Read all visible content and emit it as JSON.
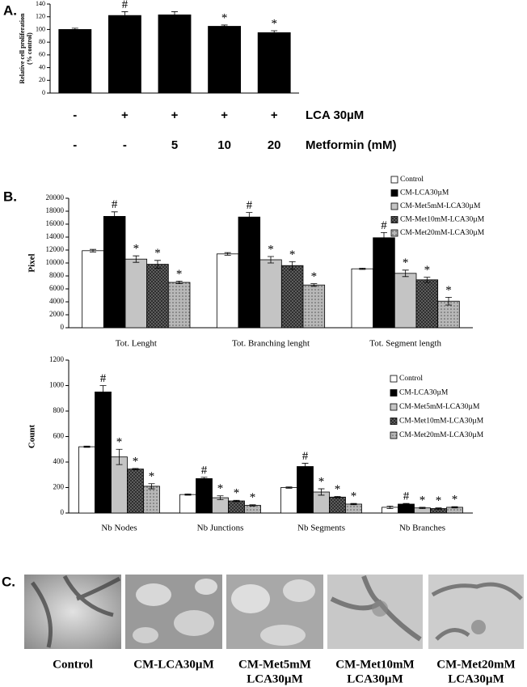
{
  "chart_data": [
    {
      "type": "bar",
      "panel_label": "A.",
      "ylabel": [
        "Relative cell proliferation",
        "(% control)"
      ],
      "ylim": [
        0,
        140
      ],
      "yticks": [
        0,
        20,
        40,
        60,
        80,
        100,
        120,
        140
      ],
      "color": "#000000",
      "values": [
        100,
        122,
        123,
        105,
        95
      ],
      "errors": [
        2,
        6,
        5,
        2,
        3
      ],
      "markers": [
        null,
        "#",
        null,
        "*",
        "*"
      ],
      "condition_rows": [
        {
          "label": "LCA 30µM",
          "values": [
            "-",
            "+",
            "+",
            "+",
            "+"
          ]
        },
        {
          "label": "Metformin (mM)",
          "values": [
            "-",
            "-",
            "5",
            "10",
            "20"
          ]
        }
      ]
    },
    {
      "type": "bar",
      "panel_label": "B.",
      "ylabel": "Pixel",
      "ylim": [
        0,
        20000
      ],
      "yticks": [
        0,
        2000,
        4000,
        6000,
        8000,
        10000,
        12000,
        14000,
        16000,
        18000,
        20000
      ],
      "categories": [
        "Tot. Lenght",
        "Tot. Branching lenght",
        "Tot. Segment length"
      ],
      "series": [
        {
          "name": "Control",
          "color": "#ffffff",
          "values": [
            11900,
            11400,
            9100
          ],
          "errors": [
            200,
            200,
            100
          ],
          "markers": [
            null,
            null,
            null
          ]
        },
        {
          "name": "CM-LCA30µM",
          "color": "#000000",
          "values": [
            17200,
            17100,
            13900
          ],
          "errors": [
            700,
            700,
            800
          ],
          "markers": [
            "#",
            "#",
            "#"
          ]
        },
        {
          "name": "CM-Met5mM-LCA30µM",
          "color": "#c4c4c4",
          "values": [
            10600,
            10500,
            8400
          ],
          "errors": [
            500,
            500,
            500
          ],
          "markers": [
            "*",
            "*",
            "*"
          ]
        },
        {
          "name": "CM-Met10mM-LCA30µM",
          "color": "#6a6a6a",
          "hatch": "cross",
          "values": [
            9800,
            9600,
            7400
          ],
          "errors": [
            600,
            600,
            400
          ],
          "markers": [
            "*",
            "*",
            "*"
          ]
        },
        {
          "name": "CM-Met20mM-LCA30µM",
          "color": "#b8b8b8",
          "hatch": "dots",
          "values": [
            7000,
            6600,
            4100
          ],
          "errors": [
            200,
            200,
            600
          ],
          "markers": [
            "*",
            "*",
            "*"
          ]
        }
      ]
    },
    {
      "type": "bar",
      "ylabel": "Count",
      "ylim": [
        0,
        1200
      ],
      "yticks": [
        0,
        200,
        400,
        600,
        800,
        1000,
        1200
      ],
      "categories": [
        "Nb Nodes",
        "Nb Junctions",
        "Nb Segments",
        "Nb Branches"
      ],
      "series": [
        {
          "name": "Control",
          "color": "#ffffff",
          "values": [
            520,
            145,
            200,
            45
          ],
          "errors": [
            5,
            5,
            5,
            10
          ],
          "markers": [
            null,
            null,
            null,
            null
          ]
        },
        {
          "name": "CM-LCA30µM",
          "color": "#000000",
          "values": [
            950,
            270,
            365,
            70
          ],
          "errors": [
            50,
            10,
            25,
            5
          ],
          "markers": [
            "#",
            "#",
            "#",
            "#"
          ]
        },
        {
          "name": "CM-Met5mM-LCA30µM",
          "color": "#c4c4c4",
          "values": [
            440,
            120,
            165,
            40
          ],
          "errors": [
            60,
            15,
            25,
            5
          ],
          "markers": [
            "*",
            "*",
            "*",
            "*"
          ]
        },
        {
          "name": "CM-Met10mM-LCA30µM",
          "color": "#6a6a6a",
          "hatch": "cross",
          "values": [
            345,
            95,
            125,
            35
          ],
          "errors": [
            5,
            5,
            5,
            5
          ],
          "markers": [
            "*",
            "*",
            "*",
            "*"
          ]
        },
        {
          "name": "CM-Met20mM-LCA30µM",
          "color": "#b8b8b8",
          "hatch": "dots",
          "values": [
            210,
            60,
            70,
            45
          ],
          "errors": [
            20,
            5,
            5,
            5
          ],
          "markers": [
            "*",
            "*",
            "*",
            "*"
          ]
        }
      ]
    }
  ],
  "panel_c": {
    "label": "C.",
    "captions": [
      [
        "Control"
      ],
      [
        "CM-LCA30µM"
      ],
      [
        "CM-Met5mM",
        "LCA30µM"
      ],
      [
        "CM-Met10mM",
        "LCA30µM"
      ],
      [
        "CM-Met20mM",
        "LCA30µM"
      ]
    ]
  }
}
